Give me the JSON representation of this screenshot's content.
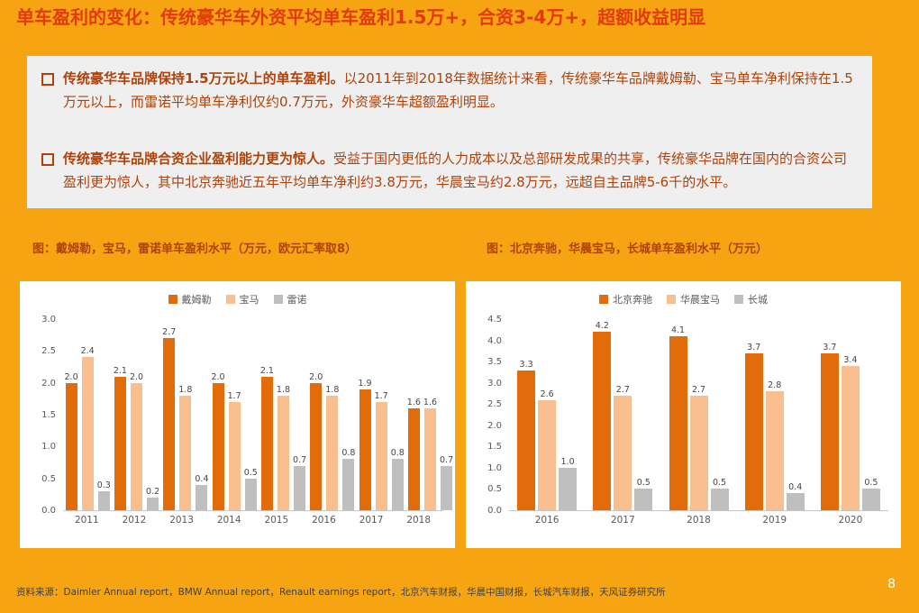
{
  "slide": {
    "title": "单车盈利的变化：传统豪华车外资平均单车盈利1.5万+，合资3-4万+，超额收益明显",
    "page_number": "8",
    "source": "资料来源：Daimler Annual report，BMW Annual report，Renault earnings report，北京汽车财报，华晨中国财报，长城汽车财报，天风证券研究所"
  },
  "colors": {
    "background": "#F7A413",
    "title_text": "#E23A0C",
    "box_background": "#EFEFEF",
    "box_text": "#AF4209",
    "series_dark_orange": "#E26B0A",
    "series_light_orange": "#FABF8F",
    "series_gray": "#BFBFBF"
  },
  "bullets": [
    {
      "lead": "传统豪华车品牌保持1.5万元以上的单车盈利。",
      "body": "以2011年到2018年数据统计来看，传统豪华车品牌戴姆勒、宝马单车净利保持在1.5万元以上，而雷诺平均单车净利仅约0.7万元，外资豪华车超额盈利明显。"
    },
    {
      "lead": "传统豪华车品牌合资企业盈利能力更为惊人。",
      "body": "受益于国内更低的人力成本以及总部研发成果的共享，传统豪华品牌在国内的合资公司盈利更为惊人，其中北京奔驰近五年平均单车净利约3.8万元，华晨宝马约2.8万元，远超自主品牌5-6千的水平。"
    }
  ],
  "chart_data": [
    {
      "type": "bar",
      "title": "图：戴姆勒，宝马，雷诺单车盈利水平（万元，欧元汇率取8）",
      "categories": [
        "2011",
        "2012",
        "2013",
        "2014",
        "2015",
        "2016",
        "2017",
        "2018"
      ],
      "series": [
        {
          "name": "戴姆勒",
          "color": "#E26B0A",
          "values": [
            2.0,
            2.1,
            2.7,
            2.0,
            2.1,
            2.0,
            1.9,
            1.6
          ]
        },
        {
          "name": "宝马",
          "color": "#FABF8F",
          "values": [
            2.4,
            2.0,
            1.8,
            1.7,
            1.8,
            1.8,
            1.7,
            1.6
          ]
        },
        {
          "name": "雷诺",
          "color": "#BFBFBF",
          "values": [
            0.3,
            0.2,
            0.4,
            0.5,
            0.7,
            0.8,
            0.8,
            0.7
          ]
        }
      ],
      "xlabel": "",
      "ylabel": "",
      "ylim": [
        0,
        3.0
      ],
      "yticks": [
        0.0,
        0.5,
        1.0,
        1.5,
        2.0,
        2.5,
        3.0
      ],
      "grid": false,
      "legend_position": "top",
      "data_labels": true
    },
    {
      "type": "bar",
      "title": "图：北京奔驰，华晨宝马，长城单车盈利水平（万元）",
      "categories": [
        "2016",
        "2017",
        "2018",
        "2019",
        "2020"
      ],
      "series": [
        {
          "name": "北京奔驰",
          "color": "#E26B0A",
          "values": [
            3.3,
            4.2,
            4.1,
            3.7,
            3.7
          ]
        },
        {
          "name": "华晨宝马",
          "color": "#FABF8F",
          "values": [
            2.6,
            2.7,
            2.7,
            2.8,
            3.4
          ]
        },
        {
          "name": "长城",
          "color": "#BFBFBF",
          "values": [
            1.0,
            0.5,
            0.5,
            0.4,
            0.5
          ]
        }
      ],
      "xlabel": "",
      "ylabel": "",
      "ylim": [
        0,
        4.5
      ],
      "yticks": [
        0.0,
        0.5,
        1.0,
        1.5,
        2.0,
        2.5,
        3.0,
        3.5,
        4.0,
        4.5
      ],
      "grid": false,
      "legend_position": "top",
      "data_labels": true
    }
  ]
}
